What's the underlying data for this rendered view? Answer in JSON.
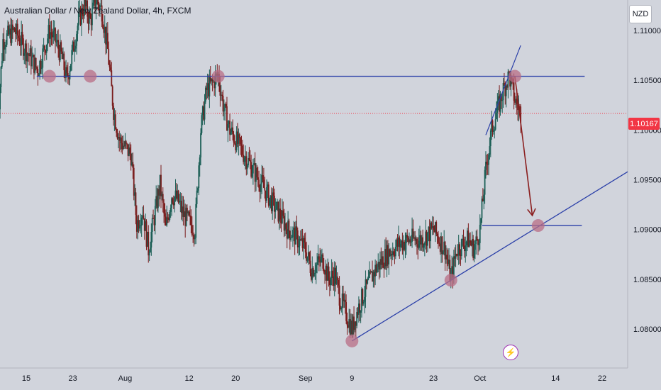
{
  "header": {
    "symbol_title": "Australian Dollar / New Zealand Dollar, 4h, FXCM"
  },
  "toolbar": {
    "currency_button": "NZD"
  },
  "price_tag": {
    "value": "1.10167",
    "color": "#f23645"
  },
  "events": {
    "icon": "lightning-icon"
  },
  "colors": {
    "background": "#d1d4dc",
    "up_candle": "#1b5e55",
    "down_candle": "#7a1c1c",
    "drawing_line": "#2a3fa8",
    "marker": "#b86d86",
    "arrow": "#8b1f1f"
  },
  "chart_data": {
    "type": "line",
    "title": "Australian Dollar / New Zealand Dollar, 4h, FXCM",
    "ylim": [
      1.0773,
      1.117
    ],
    "y_ticks": [
      "1.08000",
      "1.08500",
      "1.09000",
      "1.09500",
      "1.10000",
      "1.10500",
      "1.11000"
    ],
    "y_tick_values": [
      1.08,
      1.085,
      1.09,
      1.095,
      1.1,
      1.105,
      1.11
    ],
    "x_ticks": [
      "15",
      "23",
      "Aug",
      "12",
      "20",
      "Sep",
      "9",
      "23",
      "Oct",
      "14",
      "22"
    ],
    "x_tick_dates": [
      "2023-07-15",
      "2023-07-23",
      "2023-08-01",
      "2023-08-12",
      "2023-08-20",
      "2023-09-01",
      "2023-09-09",
      "2023-09-23",
      "2023-10-01",
      "2023-10-14",
      "2023-10-22"
    ],
    "current_price": 1.10167,
    "price_path": {
      "dates": [
        "2023-07-10",
        "2023-07-11",
        "2023-07-13",
        "2023-07-15",
        "2023-07-17",
        "2023-07-19",
        "2023-07-20",
        "2023-07-21",
        "2023-07-22",
        "2023-07-24",
        "2023-07-25",
        "2023-07-26",
        "2023-07-27",
        "2023-07-28",
        "2023-07-29",
        "2023-07-30",
        "2023-07-31",
        "2023-08-02",
        "2023-08-03",
        "2023-08-04",
        "2023-08-05",
        "2023-08-07",
        "2023-08-08",
        "2023-08-09",
        "2023-08-10",
        "2023-08-11",
        "2023-08-13",
        "2023-08-14",
        "2023-08-15",
        "2023-08-17",
        "2023-08-18",
        "2023-08-19",
        "2023-08-21",
        "2023-08-23",
        "2023-08-25",
        "2023-08-27",
        "2023-08-29",
        "2023-08-30",
        "2023-09-01",
        "2023-09-02",
        "2023-09-04",
        "2023-09-05",
        "2023-09-06",
        "2023-09-07",
        "2023-09-09",
        "2023-09-10",
        "2023-09-11",
        "2023-09-13",
        "2023-09-15",
        "2023-09-17",
        "2023-09-19",
        "2023-09-21",
        "2023-09-23",
        "2023-09-25",
        "2023-09-26",
        "2023-09-27",
        "2023-09-29",
        "2023-09-30",
        "2023-10-01",
        "2023-10-02",
        "2023-10-03",
        "2023-10-04",
        "2023-10-05",
        "2023-10-06",
        "2023-10-07",
        "2023-10-08"
      ],
      "close": [
        1.1,
        1.109,
        1.11,
        1.108,
        1.106,
        1.11,
        1.109,
        1.1075,
        1.105,
        1.111,
        1.1125,
        1.111,
        1.113,
        1.112,
        1.108,
        1.102,
        1.099,
        1.0975,
        1.0905,
        1.092,
        1.088,
        1.0945,
        1.09,
        1.0935,
        1.093,
        1.0915,
        1.09,
        1.1,
        1.104,
        1.1055,
        1.102,
        1.1,
        1.098,
        1.096,
        1.094,
        1.092,
        1.09,
        1.0895,
        1.088,
        1.086,
        1.087,
        1.085,
        1.0855,
        1.083,
        1.08,
        1.082,
        1.0835,
        1.086,
        1.0875,
        1.0885,
        1.089,
        1.089,
        1.09,
        1.088,
        1.085,
        1.088,
        1.089,
        1.088,
        1.09,
        1.096,
        1.1,
        1.102,
        1.104,
        1.1055,
        1.103,
        1.1017
      ]
    },
    "annotations": {
      "resistance_level": 1.1054,
      "support_level": 1.0904,
      "trendline_start": {
        "date": "2023-09-09",
        "price": 1.0788
      },
      "trendline_through": {
        "date": "2023-09-26",
        "price": 1.0849
      },
      "touch_points": [
        {
          "date": "2023-07-19",
          "price": 1.1054
        },
        {
          "date": "2023-07-26",
          "price": 1.1054
        },
        {
          "date": "2023-08-17",
          "price": 1.1054
        },
        {
          "date": "2023-09-09",
          "price": 1.0788
        },
        {
          "date": "2023-09-26",
          "price": 1.0849
        },
        {
          "date": "2023-10-07",
          "price": 1.1054
        },
        {
          "date": "2023-10-11",
          "price": 1.0904
        }
      ],
      "projection_arrow": {
        "from": {
          "date": "2023-10-07",
          "price": 1.1054
        },
        "to": {
          "date": "2023-10-10",
          "price": 1.0914
        }
      },
      "channel_line": {
        "from": {
          "date": "2023-10-02",
          "price": 1.0995
        },
        "to": {
          "date": "2023-10-08",
          "price": 1.1085
        }
      }
    }
  }
}
